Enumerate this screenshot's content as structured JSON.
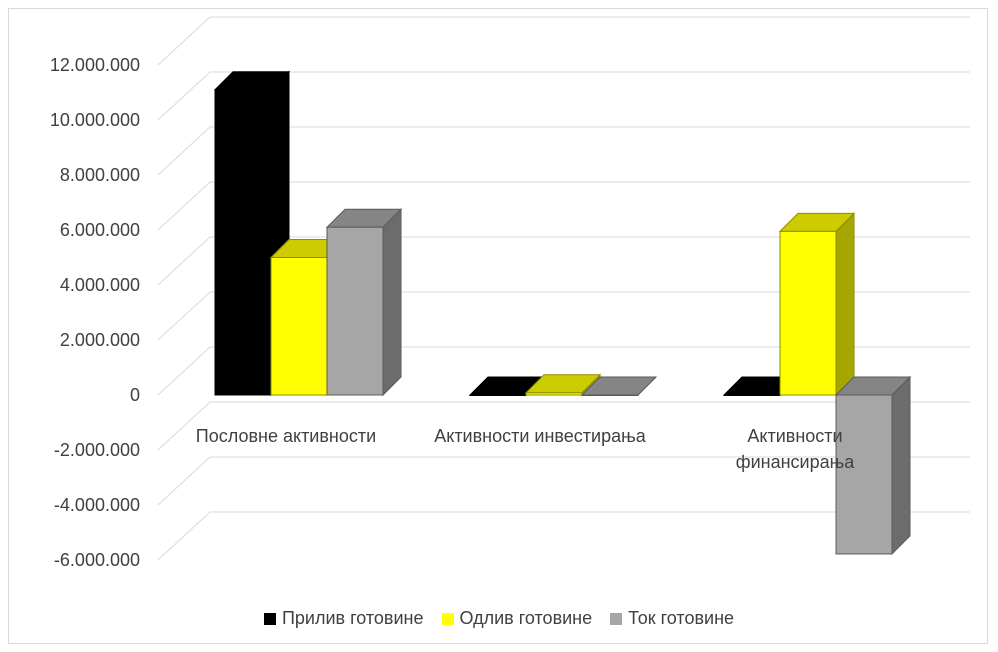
{
  "chart_data": {
    "type": "bar",
    "categories": [
      "Пословне активности",
      "Активности инвестирања",
      "Активности финансирања"
    ],
    "series": [
      {
        "name": "Прилив готовине",
        "color": "#000000",
        "values": [
          11100000,
          0,
          0
        ]
      },
      {
        "name": "Одлив готовине",
        "color": "#ffff00",
        "values": [
          5000000,
          80000,
          5950000
        ]
      },
      {
        "name": "Ток готовине",
        "color": "#a6a6a6",
        "values": [
          6100000,
          0,
          -5780000
        ]
      }
    ],
    "y_ticks": [
      "12.000.000",
      "10.000.000",
      "8.000.000",
      "6.000.000",
      "4.000.000",
      "2.000.000",
      "0",
      "-2.000.000",
      "-4.000.000",
      "-6.000.000"
    ],
    "ylim": [
      -6000000,
      12000000
    ],
    "grid": true,
    "legend_position": "bottom",
    "style": "3d-clustered-column"
  }
}
